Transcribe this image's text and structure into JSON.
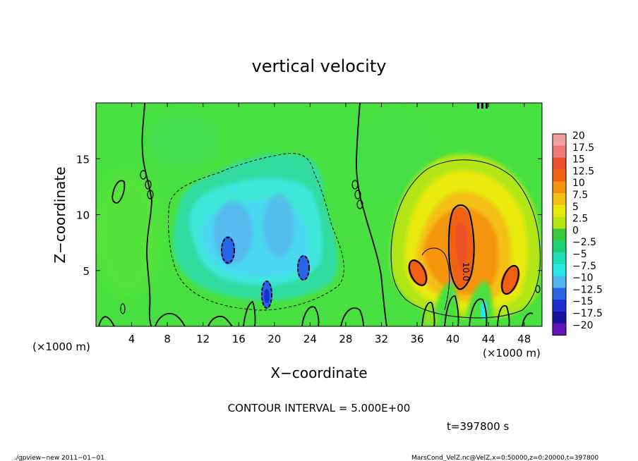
{
  "chart_data": {
    "type": "heatmap",
    "title": "vertical velocity",
    "xlabel": "X−coordinate",
    "ylabel": "Z−coordinate",
    "x_unit": "(×1000 m)",
    "y_unit": "(×1000 m)",
    "xlim": [
      0,
      50
    ],
    "ylim": [
      0,
      20
    ],
    "x_ticks": [
      "4",
      "8",
      "12",
      "16",
      "20",
      "24",
      "28",
      "32",
      "36",
      "40",
      "44",
      "48"
    ],
    "y_ticks": [
      "5",
      "10",
      "15"
    ],
    "colorbar_labels": [
      "20",
      "17.5",
      "15",
      "12.5",
      "10",
      "7.5",
      "5",
      "2.5",
      "0",
      "−2.5",
      "−5",
      "−7.5",
      "−10",
      "−12.5",
      "−15",
      "−17.5",
      "−20"
    ],
    "colorbar_colors": [
      "#f4a0a0",
      "#f07878",
      "#ec5030",
      "#f06010",
      "#f49010",
      "#f4c014",
      "#e8e810",
      "#b4e614",
      "#3cc83c",
      "#1ed278",
      "#1edcb4",
      "#28e6e6",
      "#50b4f0",
      "#2864e6",
      "#1e2cd2",
      "#1414a0",
      "#6414b4"
    ],
    "background_value_color": "#48e040",
    "contour_interval": "CONTOUR INTERVAL = 5.000E+00",
    "contour_label": "10.0",
    "features": [
      {
        "kind": "updraft",
        "x": 40.5,
        "z": 7.5,
        "peak": 12.5
      },
      {
        "kind": "updraft",
        "x": 36.5,
        "z": 5.5,
        "peak": 7.5
      },
      {
        "kind": "updraft",
        "x": 46.5,
        "z": 4.5,
        "peak": 7.5
      },
      {
        "kind": "downdraft",
        "x": 15.0,
        "z": 7.0,
        "peak": -10
      },
      {
        "kind": "downdraft",
        "x": 19.5,
        "z": 3.0,
        "peak": -10
      },
      {
        "kind": "downdraft",
        "x": 23.5,
        "z": 5.5,
        "peak": -10
      }
    ]
  },
  "info": {
    "time": "t=397800 s",
    "program": "./gpview−new   2011−01−01",
    "source": "MarsCond_VelZ.nc@VelZ,x=0:50000,z=0:20000,t=397800"
  }
}
